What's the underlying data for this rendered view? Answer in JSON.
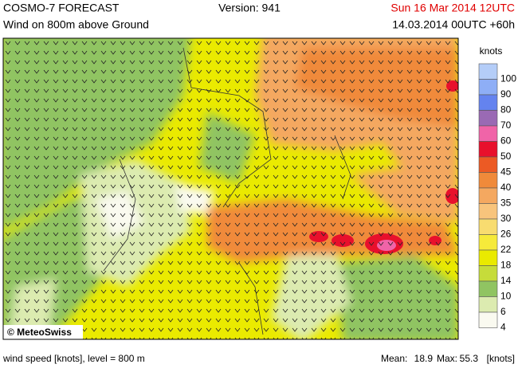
{
  "header": {
    "title": "COSMO-7 FORECAST",
    "version": "Version: 941",
    "valid_time": "Sun 16 Mar 2014 12UTC",
    "subtitle": "Wind on 800m above Ground",
    "run": "14.03.2014 00UTC +60h"
  },
  "map": {
    "copyright": "© MeteoSwiss"
  },
  "legend": {
    "unit": "knots",
    "levels": [
      {
        "label": "100",
        "color": "#b4cdf8"
      },
      {
        "label": "90",
        "color": "#8eaef6"
      },
      {
        "label": "80",
        "color": "#6483ef"
      },
      {
        "label": "70",
        "color": "#9a6ab4"
      },
      {
        "label": "60",
        "color": "#f064a8"
      },
      {
        "label": "50",
        "color": "#e8102c"
      },
      {
        "label": "45",
        "color": "#ec5a24"
      },
      {
        "label": "40",
        "color": "#f08a3a"
      },
      {
        "label": "35",
        "color": "#f4a860"
      },
      {
        "label": "30",
        "color": "#f8c47c"
      },
      {
        "label": "26",
        "color": "#f8dc70"
      },
      {
        "label": "22",
        "color": "#f6ea3a"
      },
      {
        "label": "18",
        "color": "#eaea00"
      },
      {
        "label": "14",
        "color": "#c6dc3a"
      },
      {
        "label": "10",
        "color": "#90c462"
      },
      {
        "label": "6",
        "color": "#dcebb0"
      },
      {
        "label": "4",
        "color": "#fafaf0"
      }
    ]
  },
  "footer": {
    "description": "wind speed [knots], level = 800 m",
    "mean_label": "Mean:",
    "mean": "18.9",
    "max_label": "Max:",
    "max": "55.3",
    "unit": "[knots]"
  }
}
